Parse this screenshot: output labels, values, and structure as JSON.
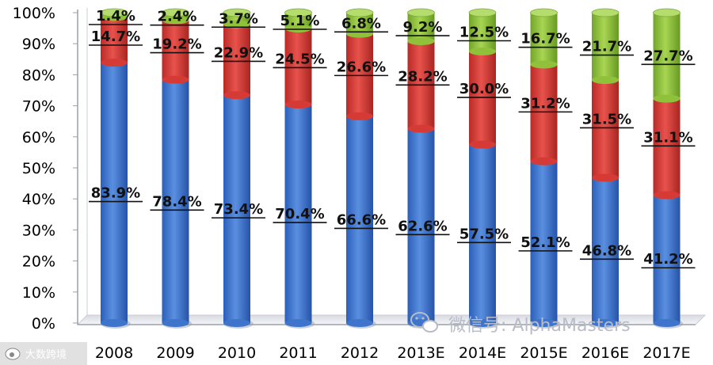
{
  "chart_data": {
    "type": "bar",
    "stacked": true,
    "categories": [
      "2008",
      "2009",
      "2010",
      "2011",
      "2012",
      "2013E",
      "2014E",
      "2015E",
      "2016E",
      "2017E"
    ],
    "series": [
      {
        "values": [
          83.9,
          78.4,
          73.4,
          70.4,
          66.6,
          62.6,
          57.5,
          52.1,
          46.8,
          41.2
        ],
        "color": "#3e74cc",
        "labels": [
          "83.9%",
          "78.4%",
          "73.4%",
          "70.4%",
          "66.6%",
          "62.6%",
          "57.5%",
          "52.1%",
          "46.8%",
          "41.2%"
        ]
      },
      {
        "values": [
          14.7,
          19.2,
          22.9,
          24.5,
          26.6,
          28.2,
          30.0,
          31.2,
          31.5,
          31.1
        ],
        "color": "#d63a35",
        "labels": [
          "14.7%",
          "19.2%",
          "22.9%",
          "24.5%",
          "26.6%",
          "28.2%",
          "30.0%",
          "31.2%",
          "31.5%",
          "31.1%"
        ]
      },
      {
        "values": [
          1.4,
          2.4,
          3.7,
          5.1,
          6.8,
          9.2,
          12.5,
          16.7,
          21.7,
          27.7
        ],
        "color": "#8fc13b",
        "labels": [
          "1.4%",
          "2.4%",
          "3.7%",
          "5.1%",
          "6.8%",
          "9.2%",
          "12.5%",
          "16.7%",
          "21.7%",
          "27.7%"
        ]
      }
    ],
    "yticks": [
      "0%",
      "10%",
      "20%",
      "30%",
      "40%",
      "50%",
      "60%",
      "70%",
      "80%",
      "90%",
      "100%"
    ],
    "ylim": [
      0,
      100
    ],
    "grid": false,
    "legend": "none",
    "style": "3d-cylinder"
  },
  "watermark": {
    "text": "微信号: AlphaMasters",
    "icon": "wechat-icon"
  },
  "corner_logo": {
    "text": "大数跨境",
    "icon": "weibo-icon"
  }
}
